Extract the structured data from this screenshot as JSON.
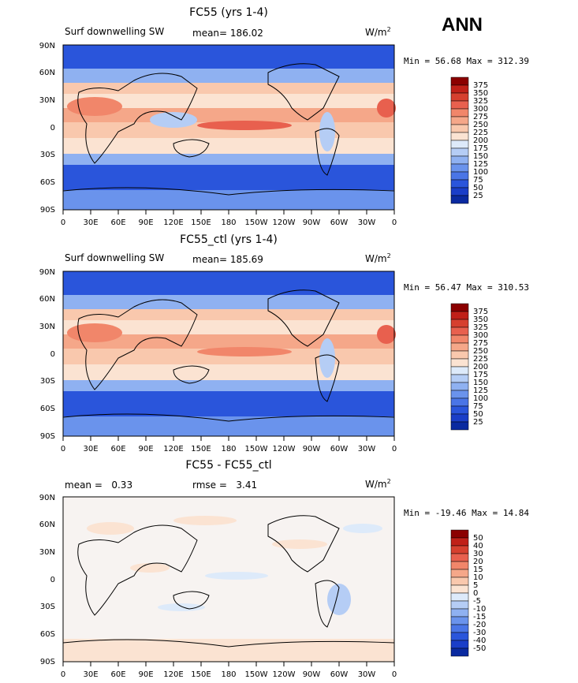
{
  "season": "ANN",
  "colors": {
    "pos": [
      "#fbe3d2",
      "#f9c8ad",
      "#f5a789",
      "#f1866a",
      "#e8604e",
      "#d6402f",
      "#c02018",
      "#8b0000"
    ],
    "neg": [
      "#ddeafa",
      "#b5cdf5",
      "#8fb1f1",
      "#6a93ec",
      "#4a75e6",
      "#2a55db",
      "#1a3ec8",
      "#0a2aa0",
      "#00007f"
    ]
  },
  "panels": [
    {
      "title": "FC55 (yrs 1-4)",
      "var_label": "Surf downwelling SW",
      "stat1_label": "mean=",
      "stat1_value": "186.02",
      "stat2_label": "",
      "stat2_value": "",
      "units": "W/m",
      "units_sup": "2",
      "minmax": "Min =  56.68 Max = 312.39",
      "colorbar_labels": [
        "375",
        "350",
        "325",
        "300",
        "275",
        "250",
        "225",
        "200",
        "175",
        "150",
        "125",
        "100",
        "75",
        "50",
        "25"
      ]
    },
    {
      "title": "FC55_ctl (yrs 1-4)",
      "var_label": "Surf downwelling SW",
      "stat1_label": "mean=",
      "stat1_value": "185.69",
      "stat2_label": "",
      "stat2_value": "",
      "units": "W/m",
      "units_sup": "2",
      "minmax": "Min =  56.47 Max = 310.53",
      "colorbar_labels": [
        "375",
        "350",
        "325",
        "300",
        "275",
        "250",
        "225",
        "200",
        "175",
        "150",
        "125",
        "100",
        "75",
        "50",
        "25"
      ]
    },
    {
      "title": "FC55 - FC55_ctl",
      "var_label": "",
      "stat1_label": "mean =",
      "stat1_value": "0.33",
      "stat2_label": "rmse =",
      "stat2_value": "3.41",
      "units": "W/m",
      "units_sup": "2",
      "minmax": "Min = -19.46 Max =  14.84",
      "colorbar_labels": [
        "50",
        "40",
        "30",
        "20",
        "15",
        "10",
        "5",
        "0",
        "-5",
        "-10",
        "-15",
        "-20",
        "-30",
        "-40",
        "-50"
      ]
    }
  ],
  "lat_labels": [
    "90N",
    "60N",
    "30N",
    "0",
    "30S",
    "60S",
    "90S"
  ],
  "lon_labels": [
    "0",
    "30E",
    "60E",
    "90E",
    "120E",
    "150E",
    "180",
    "150W",
    "120W",
    "90W",
    "60W",
    "30W",
    "0"
  ]
}
